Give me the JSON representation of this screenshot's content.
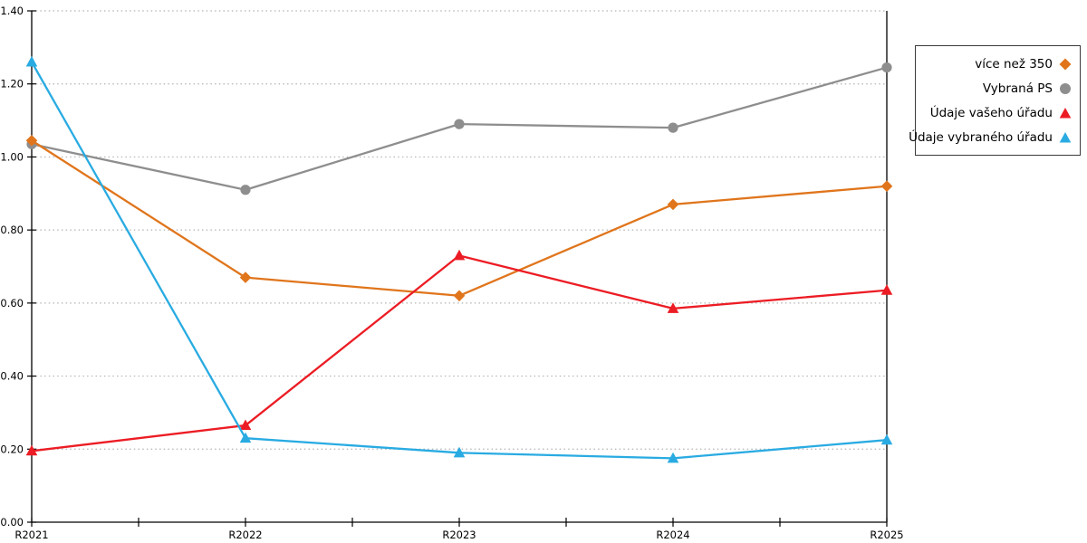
{
  "chart_data": {
    "type": "line",
    "title": "",
    "xlabel": "",
    "ylabel": "",
    "categories": [
      "R2021",
      "R2022",
      "R2023",
      "R2024",
      "R2025"
    ],
    "series": [
      {
        "name": "více než 350",
        "marker": "diamond",
        "color": "#E0751C",
        "values": [
          1.045,
          0.67,
          0.62,
          0.87,
          0.92
        ]
      },
      {
        "name": "Vybraná PS",
        "marker": "circle",
        "color": "#8E8E8E",
        "values": [
          1.035,
          0.91,
          1.09,
          1.08,
          1.245
        ]
      },
      {
        "name": "Údaje vašeho úřadu",
        "marker": "triangle",
        "color": "#EC1C24",
        "values": [
          0.195,
          0.265,
          0.73,
          0.585,
          0.635
        ]
      },
      {
        "name": "Údaje vybraného úřadu",
        "marker": "triangle",
        "color": "#29ABE2",
        "values": [
          1.26,
          0.23,
          0.19,
          0.175,
          0.225
        ]
      }
    ],
    "ylim": [
      0.0,
      1.4
    ],
    "ytick_step": 0.2,
    "ytick_labels": [
      "0.00",
      "0.20",
      "0.40",
      "0.60",
      "0.80",
      "1.00",
      "1.20",
      "1.40"
    ],
    "grid": "horizontal-dotted",
    "x_minor_ticks": "midpoints",
    "legend_position": "top-right-outside"
  },
  "colors": {
    "axis": "#000000",
    "grid": "#b2b2b2",
    "background": "#ffffff",
    "tick_label": "#000000",
    "legend_border": "#3a3a3a"
  }
}
